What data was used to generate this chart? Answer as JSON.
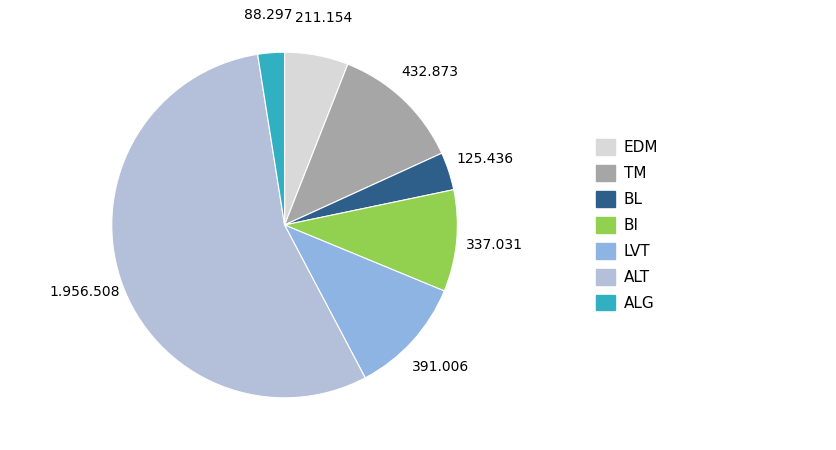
{
  "labels": [
    "EDM",
    "TM",
    "BL",
    "BI",
    "LVT",
    "ALT",
    "ALG"
  ],
  "values": [
    211.154,
    432.873,
    125.436,
    337.031,
    391.006,
    1956.508,
    88.297
  ],
  "colors": [
    "#d9d9d9",
    "#a6a6a6",
    "#2e5f8a",
    "#92d050",
    "#8db4e2",
    "#b4bfda",
    "#31b0c1"
  ],
  "label_texts": [
    "211.154",
    "432.873",
    "125.436",
    "337.031",
    "391.006",
    "1.956.508",
    "88.297"
  ],
  "startangle": 90,
  "legend_labels": [
    "EDM",
    "TM",
    "BL",
    "BI",
    "LVT",
    "ALT",
    "ALG"
  ],
  "figsize": [
    8.37,
    4.5
  ],
  "dpi": 100
}
